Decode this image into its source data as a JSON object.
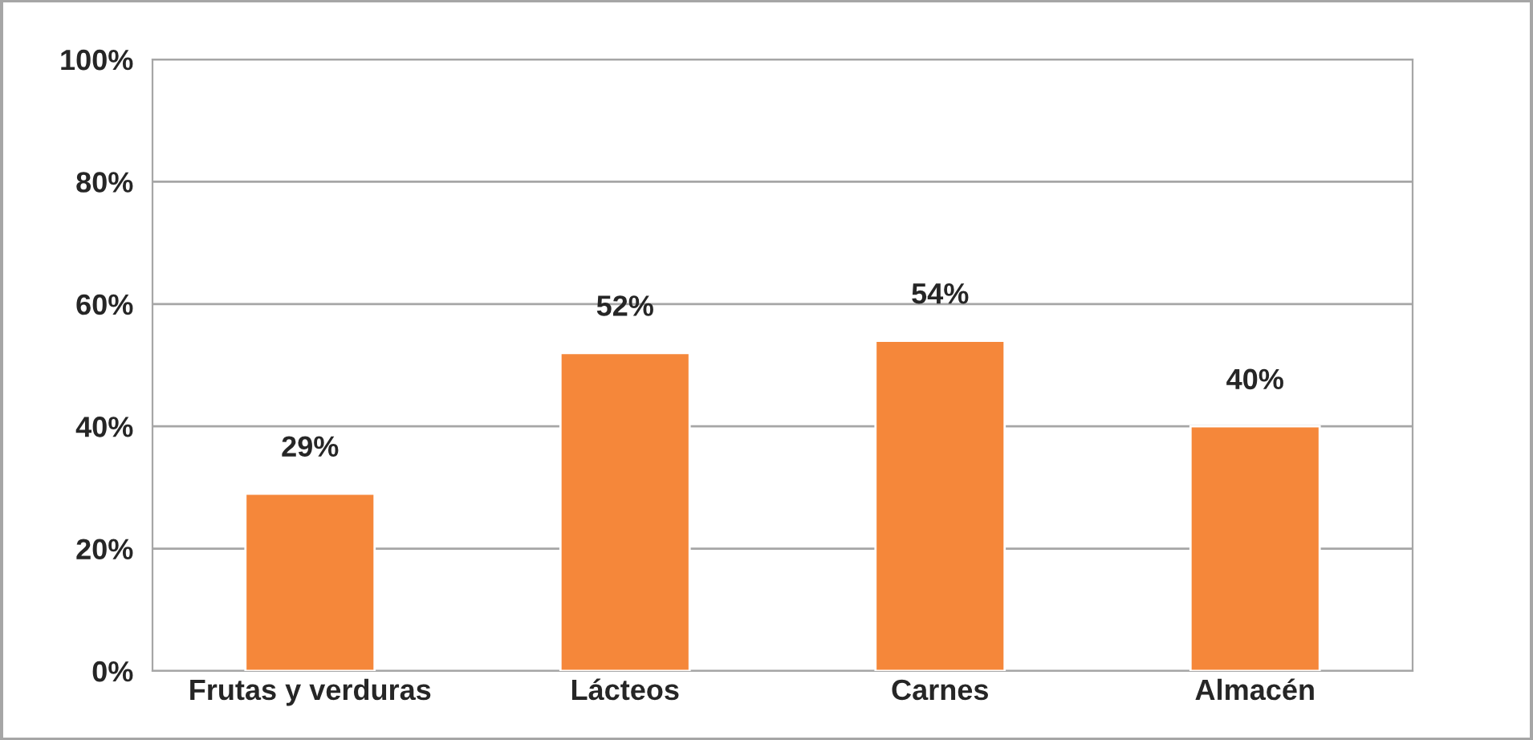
{
  "chart_data": {
    "type": "bar",
    "categories": [
      "Frutas y verduras",
      "Lácteos",
      "Carnes",
      "Almacén"
    ],
    "values": [
      29,
      52,
      54,
      40
    ],
    "color": "#f5873a",
    "data_labels": true,
    "value_labels": [
      "29%",
      "52%",
      "54%",
      "40%"
    ],
    "ylim": [
      0,
      100
    ],
    "yticks": [
      {
        "value": 0,
        "label": "0%"
      },
      {
        "value": 20,
        "label": "20%"
      },
      {
        "value": 40,
        "label": "40%"
      },
      {
        "value": 60,
        "label": "60%"
      },
      {
        "value": 80,
        "label": "80%"
      },
      {
        "value": 100,
        "label": "100%"
      }
    ],
    "grid": "y",
    "legend": false
  }
}
